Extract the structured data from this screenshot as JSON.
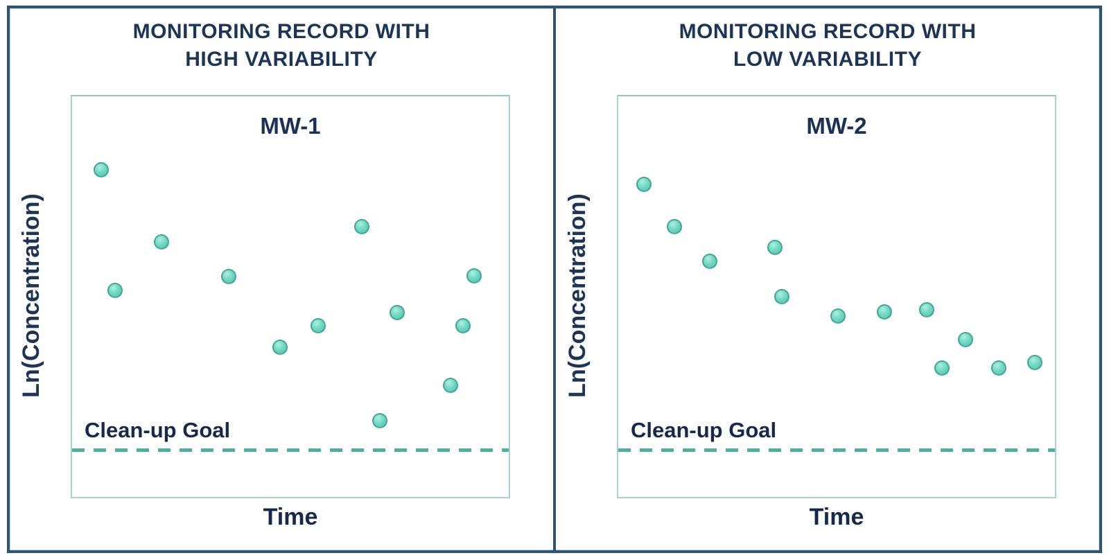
{
  "style": {
    "background": "#ffffff",
    "panel_border_color": "#2f5277",
    "plot_border_color": "#a3d5ce",
    "text_color": "#1c3557",
    "marker_fill_color": "#6fd8c4",
    "marker_edge_color": "#3f9e92",
    "goal_line_color": "#4fae9f"
  },
  "panels": [
    {
      "title_line1": "MONITORING RECORD WITH",
      "title_line2": "HIGH VARIABILITY",
      "well_label": "MW-1",
      "ylabel": "Ln(Concentration)",
      "xlabel": "Time",
      "goal_label": "Clean-up Goal"
    },
    {
      "title_line1": "MONITORING RECORD WITH",
      "title_line2": "LOW VARIABILITY",
      "well_label": "MW-2",
      "ylabel": "Ln(Concentration)",
      "xlabel": "Time",
      "goal_label": "Clean-up Goal"
    }
  ],
  "chart_data": [
    {
      "type": "scatter",
      "title": "MONITORING RECORD WITH HIGH VARIABILITY",
      "series_label": "MW-1",
      "xlabel": "Time",
      "ylabel": "Ln(Concentration)",
      "axis_ticks": "none (qualitative axes)",
      "annotation": "Clean-up Goal",
      "cleanup_goal_y": 0.118,
      "x_range": [
        0,
        1
      ],
      "y_range": [
        0,
        1
      ],
      "points": [
        {
          "x": 0.067,
          "y": 0.816
        },
        {
          "x": 0.099,
          "y": 0.516
        },
        {
          "x": 0.205,
          "y": 0.637
        },
        {
          "x": 0.358,
          "y": 0.55
        },
        {
          "x": 0.476,
          "y": 0.373
        },
        {
          "x": 0.564,
          "y": 0.427
        },
        {
          "x": 0.664,
          "y": 0.674
        },
        {
          "x": 0.705,
          "y": 0.191
        },
        {
          "x": 0.744,
          "y": 0.46
        },
        {
          "x": 0.866,
          "y": 0.278
        },
        {
          "x": 0.895,
          "y": 0.427
        },
        {
          "x": 0.92,
          "y": 0.552
        }
      ]
    },
    {
      "type": "scatter",
      "title": "MONITORING RECORD WITH LOW VARIABILITY",
      "series_label": "MW-2",
      "xlabel": "Time",
      "ylabel": "Ln(Concentration)",
      "axis_ticks": "none (qualitative axes)",
      "annotation": "Clean-up Goal",
      "cleanup_goal_y": 0.118,
      "x_range": [
        0,
        1
      ],
      "y_range": [
        0,
        1
      ],
      "points": [
        {
          "x": 0.059,
          "y": 0.78
        },
        {
          "x": 0.128,
          "y": 0.675
        },
        {
          "x": 0.209,
          "y": 0.588
        },
        {
          "x": 0.359,
          "y": 0.623
        },
        {
          "x": 0.375,
          "y": 0.5
        },
        {
          "x": 0.503,
          "y": 0.452
        },
        {
          "x": 0.61,
          "y": 0.462
        },
        {
          "x": 0.706,
          "y": 0.467
        },
        {
          "x": 0.741,
          "y": 0.322
        },
        {
          "x": 0.795,
          "y": 0.393
        },
        {
          "x": 0.871,
          "y": 0.322
        },
        {
          "x": 0.954,
          "y": 0.336
        }
      ]
    }
  ]
}
